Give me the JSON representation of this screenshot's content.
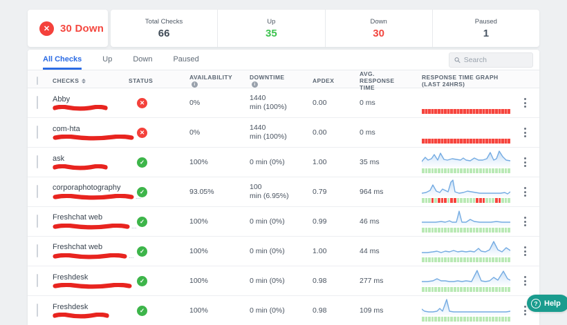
{
  "alert": {
    "label": "30 Down"
  },
  "stats": {
    "items": [
      {
        "label": "Total Checks",
        "value": "66",
        "color": "#3f4a56"
      },
      {
        "label": "Up",
        "value": "35",
        "color": "#3cc24e"
      },
      {
        "label": "Down",
        "value": "30",
        "color": "#f2453e"
      },
      {
        "label": "Paused",
        "value": "1",
        "color": "#4a5664"
      }
    ]
  },
  "tabs": {
    "items": [
      {
        "label": "All Checks",
        "active": true
      },
      {
        "label": "Up",
        "active": false
      },
      {
        "label": "Down",
        "active": false
      },
      {
        "label": "Paused",
        "active": false
      }
    ]
  },
  "search": {
    "placeholder": "Search"
  },
  "help": {
    "label": "Help"
  },
  "colors": {
    "status_down": "#f4413b",
    "status_up": "#3db54a",
    "accent_blue": "#2b6be4",
    "spark_line": "#74abe2",
    "bar_green": "#b9e9b5",
    "bar_red": "#f6453e",
    "help_teal": "#1a9c8e",
    "redaction_red": "#e8241f"
  },
  "table": {
    "header": {
      "checks": "CHECKS",
      "status": "STATUS",
      "availability": "AVAILABILITY",
      "downtime": "DOWNTIME",
      "apdex": "APDEX",
      "avg_response": "AVG. RESPONSE TIME",
      "graph": "RESPONSE TIME GRAPH (LAST 24HRS)"
    },
    "rows": [
      {
        "name": "Abby",
        "status": "down",
        "availability": "0%",
        "downtime": [
          "1440",
          "min (100%)"
        ],
        "apdex": "0.00",
        "avg_response": "0 ms",
        "redact_w": 80,
        "url_suffix": "",
        "line": null,
        "bars": "rrrrrrrrrrrrrrrrrrrrrrrrrrrr"
      },
      {
        "name": "com-hta",
        "status": "down",
        "availability": "0%",
        "downtime": [
          "1440",
          "min (100%)"
        ],
        "apdex": "0.00",
        "avg_response": "0 ms",
        "redact_w": 118,
        "url_suffix": "",
        "line": null,
        "bars": "rrrrrrrrrrrrrrrrrrrrrrrrrrrr"
      },
      {
        "name": "ask",
        "status": "up",
        "availability": "100%",
        "downtime": [
          "0 min (0%)"
        ],
        "apdex": "1.00",
        "avg_response": "35 ms",
        "redact_w": 80,
        "url_suffix": "",
        "line": [
          [
            0,
            17
          ],
          [
            5,
            11
          ],
          [
            9,
            15
          ],
          [
            14,
            13
          ],
          [
            18,
            7
          ],
          [
            23,
            15
          ],
          [
            27,
            5
          ],
          [
            32,
            14
          ],
          [
            37,
            15
          ],
          [
            44,
            13
          ],
          [
            50,
            14
          ],
          [
            56,
            15
          ],
          [
            60,
            12
          ],
          [
            64,
            15
          ],
          [
            70,
            16
          ],
          [
            76,
            12
          ],
          [
            82,
            15
          ],
          [
            88,
            15
          ],
          [
            94,
            13
          ],
          [
            99,
            4
          ],
          [
            104,
            15
          ],
          [
            108,
            13
          ],
          [
            112,
            2
          ],
          [
            117,
            10
          ],
          [
            122,
            15
          ],
          [
            128,
            16
          ]
        ],
        "bars": "gggggggggggggggggggggggggggg"
      },
      {
        "name": "corporaphotography",
        "status": "up",
        "availability": "93.05%",
        "downtime": [
          "100",
          "min (6.95%)"
        ],
        "apdex": "0.79",
        "avg_response": "964 ms",
        "redact_w": 118,
        "url_suffix": "...",
        "line": [
          [
            0,
            20
          ],
          [
            6,
            19
          ],
          [
            12,
            16
          ],
          [
            16,
            8
          ],
          [
            21,
            17
          ],
          [
            26,
            19
          ],
          [
            30,
            14
          ],
          [
            34,
            16
          ],
          [
            38,
            18
          ],
          [
            42,
            4
          ],
          [
            45,
            1
          ],
          [
            48,
            18
          ],
          [
            54,
            20
          ],
          [
            60,
            19
          ],
          [
            66,
            17
          ],
          [
            72,
            18
          ],
          [
            78,
            19
          ],
          [
            84,
            20
          ],
          [
            90,
            20
          ],
          [
            96,
            20
          ],
          [
            102,
            20
          ],
          [
            108,
            20
          ],
          [
            114,
            20
          ],
          [
            120,
            19
          ],
          [
            124,
            21
          ],
          [
            128,
            18
          ]
        ],
        "bars": "gggrgrrrgrrggggggrrrgggrrggg"
      },
      {
        "name": "Freshchat web",
        "status": "up",
        "availability": "100%",
        "downtime": [
          "0 min (0%)"
        ],
        "apdex": "0.99",
        "avg_response": "46 ms",
        "redact_w": 112,
        "url_suffix": "...",
        "line": [
          [
            0,
            19
          ],
          [
            10,
            19
          ],
          [
            20,
            19
          ],
          [
            28,
            18
          ],
          [
            34,
            19
          ],
          [
            40,
            17
          ],
          [
            44,
            19
          ],
          [
            50,
            19
          ],
          [
            54,
            3
          ],
          [
            58,
            19
          ],
          [
            64,
            19
          ],
          [
            70,
            15
          ],
          [
            76,
            18
          ],
          [
            84,
            19
          ],
          [
            92,
            19
          ],
          [
            100,
            19
          ],
          [
            108,
            18
          ],
          [
            116,
            19
          ],
          [
            128,
            19
          ]
        ],
        "bars": "gggggggggggggggggggggggggggg"
      },
      {
        "name": "Freshchat web",
        "status": "up",
        "availability": "100%",
        "downtime": [
          "0 min (0%)"
        ],
        "apdex": "1.00",
        "avg_response": "44 ms",
        "redact_w": 108,
        "url_suffix": "...",
        "line": [
          [
            0,
            20
          ],
          [
            8,
            20
          ],
          [
            16,
            19
          ],
          [
            22,
            18
          ],
          [
            28,
            20
          ],
          [
            34,
            18
          ],
          [
            40,
            19
          ],
          [
            46,
            17
          ],
          [
            52,
            19
          ],
          [
            58,
            18
          ],
          [
            64,
            19
          ],
          [
            70,
            18
          ],
          [
            76,
            19
          ],
          [
            82,
            14
          ],
          [
            86,
            18
          ],
          [
            92,
            19
          ],
          [
            98,
            16
          ],
          [
            104,
            4
          ],
          [
            110,
            16
          ],
          [
            116,
            19
          ],
          [
            122,
            13
          ],
          [
            128,
            17
          ]
        ],
        "bars": "gggggggggggggggggggggggggggg"
      },
      {
        "name": "Freshdesk",
        "status": "up",
        "availability": "100%",
        "downtime": [
          "0 min (0%)"
        ],
        "apdex": "0.98",
        "avg_response": "277 ms",
        "redact_w": 115,
        "url_suffix": "",
        "line": [
          [
            0,
            19
          ],
          [
            8,
            19
          ],
          [
            16,
            18
          ],
          [
            22,
            15
          ],
          [
            28,
            18
          ],
          [
            34,
            18
          ],
          [
            40,
            19
          ],
          [
            46,
            19
          ],
          [
            52,
            18
          ],
          [
            58,
            19
          ],
          [
            64,
            18
          ],
          [
            72,
            19
          ],
          [
            80,
            3
          ],
          [
            86,
            18
          ],
          [
            92,
            19
          ],
          [
            98,
            18
          ],
          [
            104,
            13
          ],
          [
            110,
            17
          ],
          [
            118,
            4
          ],
          [
            124,
            15
          ],
          [
            128,
            17
          ]
        ],
        "bars": "gggggggggggggggggggggggggggg"
      },
      {
        "name": "Freshdesk",
        "status": "up",
        "availability": "100%",
        "downtime": [
          "0 min (0%)"
        ],
        "apdex": "0.98",
        "avg_response": "109 ms",
        "redact_w": 82,
        "url_suffix": "",
        "line": [
          [
            0,
            16
          ],
          [
            4,
            19
          ],
          [
            10,
            20
          ],
          [
            16,
            20
          ],
          [
            22,
            19
          ],
          [
            26,
            15
          ],
          [
            30,
            19
          ],
          [
            36,
            2
          ],
          [
            40,
            19
          ],
          [
            46,
            20
          ],
          [
            54,
            20
          ],
          [
            64,
            20
          ],
          [
            74,
            20
          ],
          [
            84,
            20
          ],
          [
            94,
            20
          ],
          [
            104,
            20
          ],
          [
            114,
            20
          ],
          [
            122,
            20
          ],
          [
            128,
            19
          ]
        ],
        "bars": "gggggggggggggggggggggggggggg"
      }
    ]
  }
}
